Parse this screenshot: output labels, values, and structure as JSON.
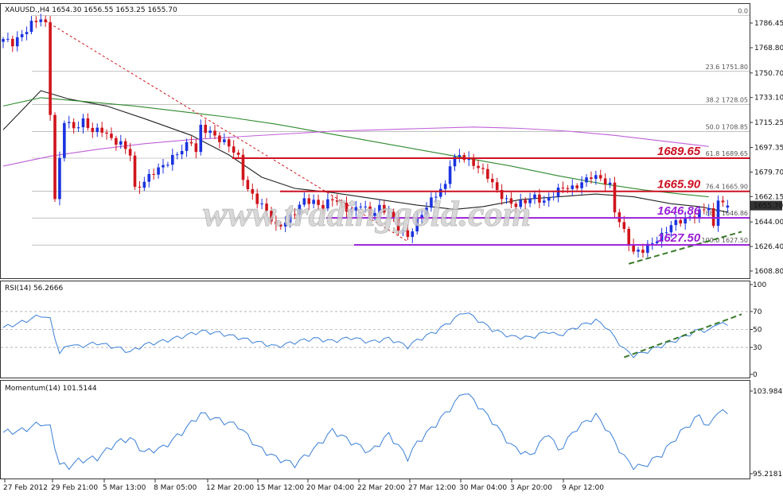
{
  "header": {
    "main": "XAUUSD.,H4  1654.30 1656.55 1653.25 1655.70",
    "rsi": "RSI(14) 56.2666",
    "momentum": "Momentum(14) 101.5144"
  },
  "watermark": "www.tradinggold.com",
  "current_price_label": "1655.70",
  "colors": {
    "bull": "#1a33e0",
    "bear": "#d0141b",
    "level_red": "#cc1122",
    "level_purple": "#9a1fd6",
    "ma_black": "#222222",
    "ma_green": "#2e8a2e",
    "ma_purple": "#c060d8",
    "oscillator": "#3a7fd6",
    "trend_dash": "#3a7a2a",
    "grid": "#9a9a9a"
  },
  "chart_data": [
    {
      "type": "candlestick",
      "title": "XAUUSD.,H4",
      "ohlc_last": {
        "open": 1654.3,
        "high": 1656.55,
        "low": 1653.25,
        "close": 1655.7
      },
      "ylim": [
        1600,
        1800
      ],
      "y_ticks": [
        1786.45,
        1768.8,
        1750.7,
        1733.1,
        1715.25,
        1697.35,
        1679.7,
        1662.15,
        1644.0,
        1626.4,
        1608.8
      ],
      "x_ticks": [
        "27 Feb 2012",
        "29 Feb 21:00",
        "5 Mar 13:00",
        "8 Mar 05:00",
        "12 Mar 20:00",
        "15 Mar 12:00",
        "20 Mar 04:00",
        "22 Mar 20:00",
        "27 Mar 12:00",
        "30 Mar 04:00",
        "3 Apr 20:00",
        "9 Apr 12:00"
      ],
      "fibonacci": [
        {
          "label": "0.0",
          "value": 1792
        },
        {
          "label": "23.6 1751.80",
          "value": 1751.8
        },
        {
          "label": "38.2 1728.05",
          "value": 1728.05
        },
        {
          "label": "50.0 1708.85",
          "value": 1708.85
        },
        {
          "label": "61.8 1689.65",
          "value": 1689.65
        },
        {
          "label": "76.4 1665.90",
          "value": 1665.9
        },
        {
          "label": "88.1 1646.86",
          "value": 1646.86
        },
        {
          "label": "100.0 1627.50",
          "value": 1627.5
        }
      ],
      "levels": [
        {
          "label": "1689.65",
          "value": 1689.65,
          "color": "red"
        },
        {
          "label": "1665.90",
          "value": 1665.9,
          "color": "red"
        },
        {
          "label": "1646.86",
          "value": 1646.86,
          "color": "purple"
        },
        {
          "label": "1627.50",
          "value": 1627.5,
          "color": "purple"
        }
      ],
      "close_path": [
        [
          0,
          1775
        ],
        [
          2,
          1772
        ],
        [
          4,
          1778
        ],
        [
          6,
          1786
        ],
        [
          8,
          1790
        ],
        [
          9,
          1785
        ],
        [
          11,
          1660
        ],
        [
          13,
          1717
        ],
        [
          15,
          1711
        ],
        [
          17,
          1716
        ],
        [
          19,
          1709
        ],
        [
          21,
          1710
        ],
        [
          23,
          1703
        ],
        [
          25,
          1700
        ],
        [
          27,
          1693
        ],
        [
          28,
          1667
        ],
        [
          30,
          1673
        ],
        [
          32,
          1680
        ],
        [
          34,
          1684
        ],
        [
          36,
          1690
        ],
        [
          38,
          1696
        ],
        [
          40,
          1702
        ],
        [
          41,
          1694
        ],
        [
          42,
          1712
        ],
        [
          44,
          1708
        ],
        [
          46,
          1703
        ],
        [
          48,
          1699
        ],
        [
          50,
          1690
        ],
        [
          51,
          1676
        ],
        [
          52,
          1667
        ],
        [
          54,
          1659
        ],
        [
          56,
          1652
        ],
        [
          58,
          1640
        ],
        [
          60,
          1644
        ],
        [
          62,
          1651
        ],
        [
          64,
          1660
        ],
        [
          66,
          1658
        ],
        [
          68,
          1655
        ],
        [
          70,
          1661
        ],
        [
          72,
          1656
        ],
        [
          74,
          1651
        ],
        [
          76,
          1657
        ],
        [
          78,
          1649
        ],
        [
          80,
          1654
        ],
        [
          82,
          1651
        ],
        [
          84,
          1640
        ],
        [
          86,
          1633
        ],
        [
          88,
          1645
        ],
        [
          90,
          1655
        ],
        [
          92,
          1664
        ],
        [
          94,
          1670
        ],
        [
          95,
          1686
        ],
        [
          97,
          1692
        ],
        [
          99,
          1688
        ],
        [
          101,
          1683
        ],
        [
          103,
          1677
        ],
        [
          105,
          1666
        ],
        [
          107,
          1659
        ],
        [
          109,
          1656
        ],
        [
          111,
          1659
        ],
        [
          113,
          1662
        ],
        [
          115,
          1658
        ],
        [
          117,
          1664
        ],
        [
          119,
          1669
        ],
        [
          121,
          1668
        ],
        [
          123,
          1672
        ],
        [
          125,
          1677
        ],
        [
          127,
          1675
        ],
        [
          129,
          1670
        ],
        [
          130,
          1652
        ],
        [
          132,
          1637
        ],
        [
          134,
          1622
        ],
        [
          136,
          1624
        ],
        [
          138,
          1629
        ],
        [
          140,
          1634
        ],
        [
          142,
          1642
        ],
        [
          144,
          1645
        ],
        [
          146,
          1647
        ],
        [
          148,
          1651
        ],
        [
          150,
          1655
        ],
        [
          151,
          1639
        ],
        [
          152,
          1661
        ],
        [
          154,
          1655
        ]
      ],
      "series": [
        {
          "name": "",
          "color": "black",
          "values": [
            [
              0,
              1710
            ],
            [
              8,
              1738
            ],
            [
              14,
              1732
            ],
            [
              22,
              1727
            ],
            [
              30,
              1718
            ],
            [
              40,
              1706
            ],
            [
              48,
              1692
            ],
            [
              55,
              1676
            ],
            [
              62,
              1668
            ],
            [
              70,
              1665
            ],
            [
              80,
              1660
            ],
            [
              88,
              1656
            ],
            [
              96,
              1653
            ],
            [
              102,
              1655
            ],
            [
              110,
              1660
            ],
            [
              118,
              1662
            ],
            [
              126,
              1664
            ],
            [
              134,
              1662
            ],
            [
              142,
              1657
            ],
            [
              148,
              1655
            ],
            [
              154,
              1651
            ]
          ]
        },
        {
          "name": "",
          "color": "green",
          "values": [
            [
              0,
              1727
            ],
            [
              8,
              1733
            ],
            [
              18,
              1730
            ],
            [
              28,
              1727
            ],
            [
              38,
              1723
            ],
            [
              48,
              1719
            ],
            [
              58,
              1714
            ],
            [
              68,
              1708
            ],
            [
              78,
              1702
            ],
            [
              88,
              1696
            ],
            [
              98,
              1690
            ],
            [
              108,
              1684
            ],
            [
              118,
              1677
            ],
            [
              128,
              1671
            ],
            [
              136,
              1667
            ],
            [
              144,
              1664
            ],
            [
              150,
              1662
            ]
          ]
        },
        {
          "name": "",
          "color": "purple",
          "values": [
            [
              0,
              1684
            ],
            [
              10,
              1691
            ],
            [
              20,
              1696
            ],
            [
              30,
              1700
            ],
            [
              40,
              1703
            ],
            [
              50,
              1705
            ],
            [
              60,
              1707
            ],
            [
              70,
              1709
            ],
            [
              80,
              1710
            ],
            [
              90,
              1711
            ],
            [
              100,
              1712
            ],
            [
              110,
              1711
            ],
            [
              120,
              1709
            ],
            [
              130,
              1706
            ],
            [
              140,
              1702
            ],
            [
              150,
              1698
            ]
          ]
        }
      ],
      "trendlines": [
        {
          "style": "red-dotted",
          "from": [
            9,
            1788
          ],
          "to": [
            86,
            1630
          ]
        },
        {
          "style": "green-dashed",
          "from": [
            133,
            1614
          ],
          "to": [
            157,
            1637
          ]
        }
      ]
    },
    {
      "type": "line",
      "title": "RSI(14) 56.2666",
      "ylim": [
        0,
        100
      ],
      "y_ticks": [
        100,
        70,
        50,
        30,
        0
      ],
      "values": [
        [
          0,
          52
        ],
        [
          4,
          58
        ],
        [
          8,
          66
        ],
        [
          10,
          61
        ],
        [
          12,
          23
        ],
        [
          14,
          34
        ],
        [
          16,
          31
        ],
        [
          20,
          35
        ],
        [
          24,
          30
        ],
        [
          27,
          25
        ],
        [
          30,
          33
        ],
        [
          34,
          37
        ],
        [
          38,
          42
        ],
        [
          42,
          48
        ],
        [
          46,
          46
        ],
        [
          50,
          41
        ],
        [
          54,
          36
        ],
        [
          58,
          31
        ],
        [
          62,
          36
        ],
        [
          66,
          40
        ],
        [
          70,
          37
        ],
        [
          74,
          41
        ],
        [
          78,
          36
        ],
        [
          82,
          40
        ],
        [
          86,
          31
        ],
        [
          88,
          38
        ],
        [
          92,
          48
        ],
        [
          96,
          62
        ],
        [
          98,
          70
        ],
        [
          100,
          64
        ],
        [
          104,
          50
        ],
        [
          108,
          42
        ],
        [
          112,
          41
        ],
        [
          116,
          48
        ],
        [
          118,
          43
        ],
        [
          122,
          53
        ],
        [
          126,
          60
        ],
        [
          128,
          54
        ],
        [
          132,
          28
        ],
        [
          134,
          21
        ],
        [
          136,
          24
        ],
        [
          140,
          32
        ],
        [
          144,
          40
        ],
        [
          148,
          50
        ],
        [
          150,
          48
        ],
        [
          152,
          58
        ],
        [
          154,
          54
        ]
      ],
      "trendline": {
        "from": [
          132,
          19
        ],
        "to": [
          157,
          67
        ]
      }
    },
    {
      "type": "line",
      "title": "Momentum(14) 101.5144",
      "y_ticks": [
        103.9843,
        95.2181
      ],
      "values": [
        [
          0,
          99.6
        ],
        [
          4,
          99.8
        ],
        [
          8,
          100.6
        ],
        [
          10,
          100.1
        ],
        [
          12,
          96.2
        ],
        [
          14,
          96.0
        ],
        [
          16,
          96.6
        ],
        [
          20,
          96.9
        ],
        [
          24,
          98.5
        ],
        [
          27,
          99.0
        ],
        [
          30,
          97.5
        ],
        [
          34,
          98.0
        ],
        [
          38,
          99.6
        ],
        [
          42,
          101.6
        ],
        [
          46,
          100.9
        ],
        [
          50,
          100.3
        ],
        [
          54,
          98.1
        ],
        [
          58,
          96.9
        ],
        [
          62,
          96.2
        ],
        [
          66,
          97.8
        ],
        [
          70,
          99.8
        ],
        [
          74,
          98.6
        ],
        [
          78,
          97.5
        ],
        [
          82,
          99.4
        ],
        [
          86,
          96.9
        ],
        [
          88,
          98.5
        ],
        [
          92,
          100.5
        ],
        [
          96,
          102.7
        ],
        [
          98,
          104.0
        ],
        [
          100,
          103.0
        ],
        [
          104,
          100.8
        ],
        [
          108,
          98.2
        ],
        [
          112,
          97.1
        ],
        [
          116,
          99.6
        ],
        [
          118,
          97.6
        ],
        [
          122,
          100.1
        ],
        [
          126,
          101.4
        ],
        [
          128,
          100.2
        ],
        [
          132,
          97.0
        ],
        [
          134,
          96.0
        ],
        [
          136,
          96.0
        ],
        [
          140,
          97.3
        ],
        [
          144,
          99.6
        ],
        [
          148,
          101.4
        ],
        [
          150,
          100.1
        ],
        [
          152,
          102.0
        ],
        [
          154,
          101.5
        ]
      ]
    }
  ]
}
